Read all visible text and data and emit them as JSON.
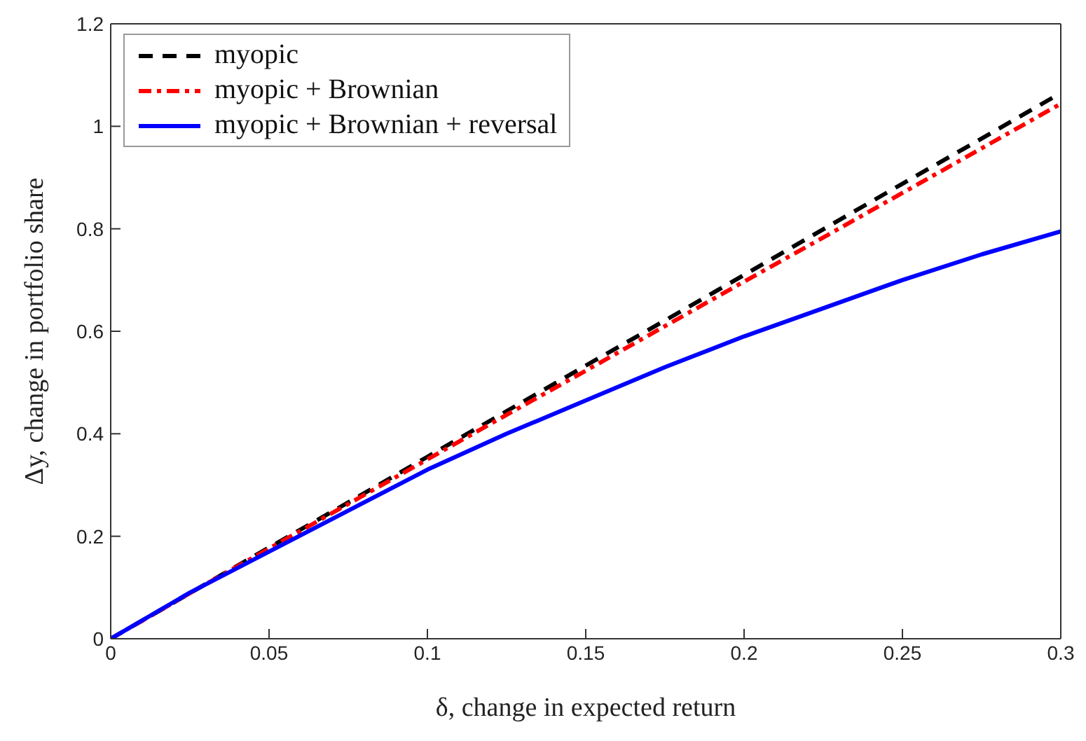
{
  "chart_data": {
    "type": "line",
    "xlabel": "δ, change in expected return",
    "ylabel": "Δy, change in portfolio share",
    "x": [
      0,
      0.025,
      0.05,
      0.075,
      0.1,
      0.125,
      0.15,
      0.175,
      0.2,
      0.225,
      0.25,
      0.275,
      0.3
    ],
    "series": [
      {
        "name": "myopic",
        "color": "#000000",
        "line_style": "dashed",
        "values": [
          0,
          0.089,
          0.178,
          0.266,
          0.355,
          0.444,
          0.533,
          0.621,
          0.71,
          0.799,
          0.888,
          0.976,
          1.065
        ]
      },
      {
        "name": "myopic + Brownian",
        "color": "#ff0000",
        "line_style": "dashdot",
        "values": [
          0,
          0.089,
          0.176,
          0.263,
          0.35,
          0.437,
          0.523,
          0.61,
          0.697,
          0.783,
          0.87,
          0.957,
          1.044
        ]
      },
      {
        "name": "myopic + Brownian + reversal",
        "color": "#0000ff",
        "line_style": "solid",
        "values": [
          0,
          0.09,
          0.17,
          0.25,
          0.33,
          0.4,
          0.465,
          0.53,
          0.59,
          0.645,
          0.7,
          0.75,
          0.795
        ]
      }
    ],
    "xlim": [
      0,
      0.3
    ],
    "xticks": [
      0,
      0.05,
      0.1,
      0.15,
      0.2,
      0.25,
      0.3
    ],
    "ylim": [
      0,
      1.2
    ],
    "yticks": [
      0,
      0.2,
      0.4,
      0.6,
      0.8,
      1,
      1.2
    ],
    "grid": false,
    "legend": "top left",
    "marker": "none"
  }
}
